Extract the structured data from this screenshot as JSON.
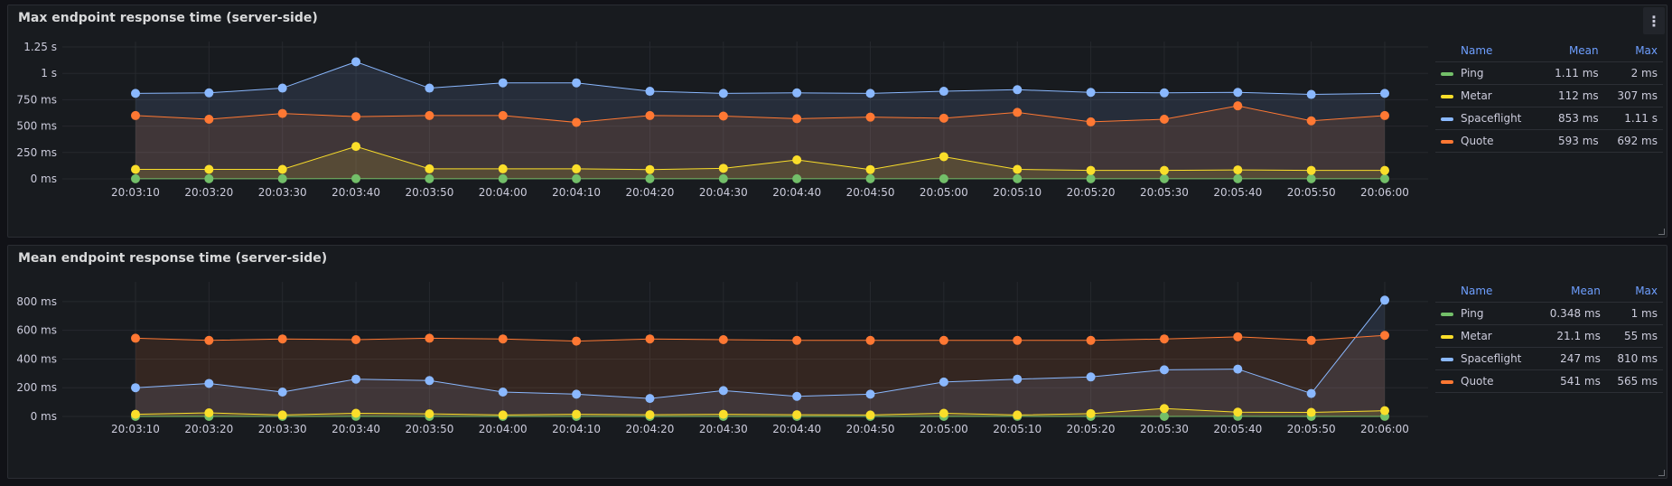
{
  "colors": {
    "Ping": "#73bf69",
    "Metar": "#fade2a",
    "Spaceflight": "#8ab8ff",
    "Quote": "#ff7833"
  },
  "menu_icon": "kebab-menu-icon",
  "legend_headers": {
    "name": "Name",
    "mean": "Mean",
    "max": "Max"
  },
  "chart_data": [
    {
      "type": "line",
      "title": "Max endpoint response time (server-side)",
      "x": [
        "20:03:10",
        "20:03:20",
        "20:03:30",
        "20:03:40",
        "20:03:50",
        "20:04:00",
        "20:04:10",
        "20:04:20",
        "20:04:30",
        "20:04:40",
        "20:04:50",
        "20:05:00",
        "20:05:10",
        "20:05:20",
        "20:05:30",
        "20:05:40",
        "20:05:50",
        "20:06:00"
      ],
      "y_unit": "ms",
      "ylim": [
        0,
        1250
      ],
      "yticks": [
        0,
        250,
        500,
        750,
        1000,
        1250
      ],
      "ytick_labels": [
        "0 ms",
        "250 ms",
        "500 ms",
        "750 ms",
        "1 s",
        "1.25 s"
      ],
      "grid": true,
      "legend_position": "right",
      "legend": [
        {
          "name": "Ping",
          "mean": "1.11 ms",
          "max": "2 ms"
        },
        {
          "name": "Metar",
          "mean": "112 ms",
          "max": "307 ms"
        },
        {
          "name": "Spaceflight",
          "mean": "853 ms",
          "max": "1.11 s"
        },
        {
          "name": "Quote",
          "mean": "593 ms",
          "max": "692 ms"
        }
      ],
      "series": [
        {
          "name": "Ping",
          "values": [
            1,
            1,
            1,
            2,
            1,
            1,
            1,
            1,
            1,
            1,
            1,
            1,
            1,
            1,
            1,
            1,
            1,
            1
          ]
        },
        {
          "name": "Metar",
          "values": [
            90,
            90,
            90,
            307,
            95,
            95,
            95,
            88,
            100,
            180,
            88,
            210,
            90,
            80,
            80,
            85,
            80,
            80
          ]
        },
        {
          "name": "Spaceflight",
          "values": [
            810,
            815,
            860,
            1110,
            860,
            910,
            910,
            830,
            810,
            815,
            810,
            830,
            845,
            820,
            815,
            820,
            800,
            810
          ]
        },
        {
          "name": "Quote",
          "values": [
            600,
            565,
            620,
            590,
            600,
            600,
            535,
            600,
            595,
            570,
            585,
            575,
            630,
            540,
            565,
            692,
            550,
            600
          ]
        }
      ]
    },
    {
      "type": "line",
      "title": "Mean endpoint response time (server-side)",
      "x": [
        "20:03:10",
        "20:03:20",
        "20:03:30",
        "20:03:40",
        "20:03:50",
        "20:04:00",
        "20:04:10",
        "20:04:20",
        "20:04:30",
        "20:04:40",
        "20:04:50",
        "20:05:00",
        "20:05:10",
        "20:05:20",
        "20:05:30",
        "20:05:40",
        "20:05:50",
        "20:06:00"
      ],
      "y_unit": "ms",
      "ylim": [
        0,
        900
      ],
      "yticks": [
        0,
        200,
        400,
        600,
        800
      ],
      "ytick_labels": [
        "0 ms",
        "200 ms",
        "400 ms",
        "600 ms",
        "800 ms"
      ],
      "grid": true,
      "legend_position": "right",
      "legend": [
        {
          "name": "Ping",
          "mean": "0.348 ms",
          "max": "1 ms"
        },
        {
          "name": "Metar",
          "mean": "21.1 ms",
          "max": "55 ms"
        },
        {
          "name": "Spaceflight",
          "mean": "247 ms",
          "max": "810 ms"
        },
        {
          "name": "Quote",
          "mean": "541 ms",
          "max": "565 ms"
        }
      ],
      "series": [
        {
          "name": "Ping",
          "values": [
            0.3,
            0.3,
            0.3,
            0.4,
            0.3,
            0.3,
            0.3,
            0.3,
            0.3,
            0.3,
            0.3,
            0.3,
            0.4,
            0.3,
            0.3,
            0.4,
            0.3,
            0.4
          ]
        },
        {
          "name": "Metar",
          "values": [
            15,
            25,
            10,
            22,
            18,
            10,
            15,
            12,
            15,
            12,
            10,
            22,
            10,
            20,
            55,
            30,
            28,
            40
          ]
        },
        {
          "name": "Spaceflight",
          "values": [
            200,
            230,
            170,
            260,
            250,
            170,
            155,
            125,
            180,
            140,
            155,
            240,
            260,
            275,
            325,
            330,
            160,
            810
          ]
        },
        {
          "name": "Quote",
          "values": [
            545,
            530,
            540,
            535,
            545,
            540,
            525,
            540,
            535,
            530,
            530,
            530,
            530,
            530,
            540,
            555,
            530,
            565
          ]
        }
      ]
    }
  ]
}
